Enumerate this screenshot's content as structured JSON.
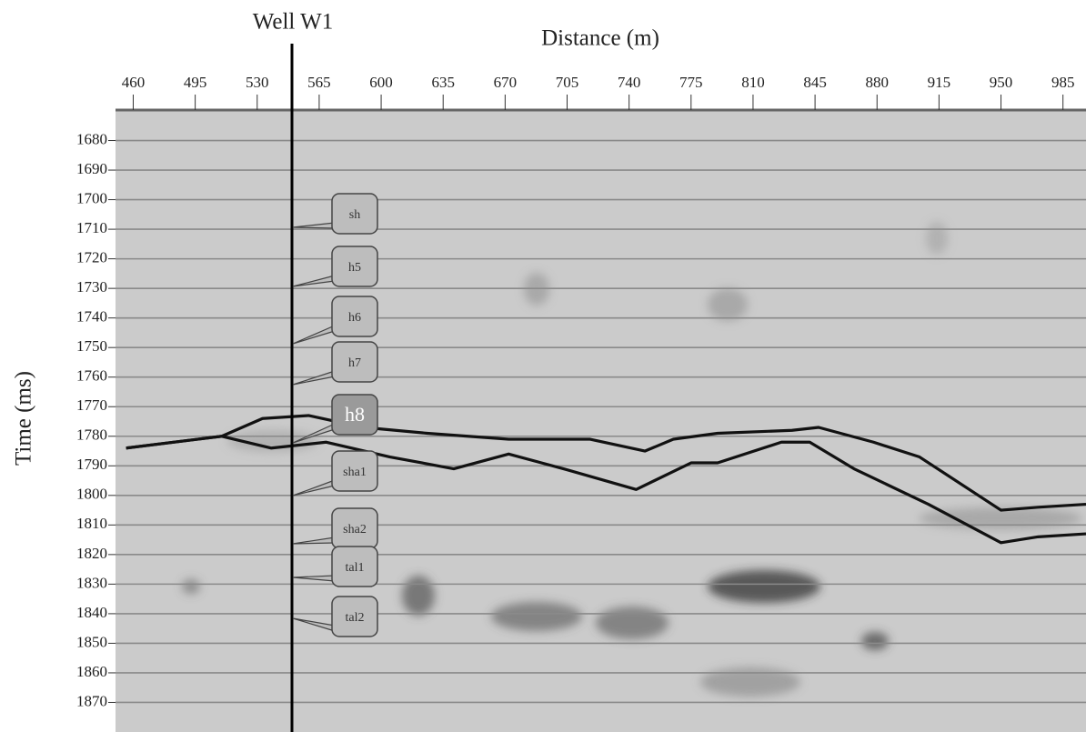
{
  "chart_data": {
    "type": "line",
    "title": "Distance (m)",
    "well_label": "Well W1",
    "y_label": "Time (ms)",
    "xlim": [
      450,
      998
    ],
    "xticks": [
      460,
      495,
      530,
      565,
      600,
      635,
      670,
      705,
      740,
      775,
      810,
      845,
      880,
      915,
      950,
      985
    ],
    "ylim": [
      1670,
      1880
    ],
    "yticks": [
      1680,
      1690,
      1700,
      1710,
      1720,
      1730,
      1740,
      1750,
      1760,
      1770,
      1780,
      1790,
      1800,
      1810,
      1820,
      1830,
      1840,
      1850,
      1860,
      1870
    ],
    "grid": true,
    "y_inverted": true,
    "series": [
      {
        "color": "#111111",
        "x": [
          456,
          510,
          533,
          559,
          590,
          626,
          672,
          718,
          749,
          765,
          790,
          832,
          847,
          878,
          904,
          950,
          971,
          998
        ],
        "values": [
          1784,
          1780,
          1774,
          1773,
          1777,
          1779,
          1781,
          1781,
          1785,
          1781,
          1779,
          1778,
          1777,
          1782,
          1787,
          1805,
          1804,
          1803
        ]
      },
      {
        "color": "#111111",
        "x": [
          456,
          510,
          538,
          569,
          605,
          641,
          672,
          703,
          744,
          775,
          790,
          826,
          842,
          867,
          909,
          950,
          971,
          998
        ],
        "values": [
          1784,
          1780,
          1784,
          1782,
          1787,
          1791,
          1786,
          1791,
          1798,
          1789,
          1789,
          1782,
          1782,
          1791,
          1803,
          1816,
          1814,
          1813
        ]
      }
    ],
    "annotations": [
      "sh",
      "h5",
      "h6",
      "h7",
      "h8",
      "sha1",
      "sha2",
      "tal1",
      "tal2"
    ]
  }
}
